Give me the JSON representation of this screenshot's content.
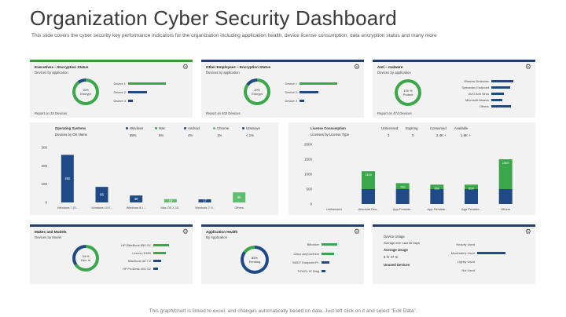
{
  "header": {
    "title": "Organization Cyber Security Dashboard",
    "subtitle": "This slide covers the cyber security key performance indicators for the organization including application health, device license consumption, data encryption status and many more"
  },
  "footer": "This graph/chart is linked to excel, and changes automatically based on data. Just left click on it and select \"Edit Data\".",
  "colors": {
    "green": "#3aa84a",
    "navy": "#1f4a86",
    "light_green": "#5cbf6e",
    "panel_bg": "#f2f2f2"
  },
  "panels": {
    "executives": {
      "title": "Executives – Encryption Status",
      "subtitle": "Devices by application",
      "donut": {
        "line1": "10%",
        "line2": "Encrypt",
        "fraction": 0.9
      },
      "bars": [
        {
          "label": "Device 1",
          "value": 1.0,
          "color": "green"
        },
        {
          "label": "Device 2",
          "value": 0.45,
          "color": "navy"
        },
        {
          "label": "Device 3",
          "value": 0.12,
          "color": "navy"
        }
      ],
      "report": "Report on 32 Devices"
    },
    "other_employees": {
      "title": "Other Employees – Encryption Status",
      "subtitle": "Devices by application",
      "donut": {
        "line1": "10%",
        "line2": "Encrypt",
        "fraction": 0.85
      },
      "bars": [
        {
          "label": "Device 1",
          "value": 1.0,
          "color": "green"
        },
        {
          "label": "Device 2",
          "value": 0.5,
          "color": "navy"
        },
        {
          "label": "Device 3",
          "value": 0.12,
          "color": "navy"
        }
      ],
      "report": "Report on 402 Devices"
    },
    "antimalware": {
      "title": "Anti – malware",
      "subtitle": "Devices by application",
      "donut": {
        "line1": "100 %",
        "line2": "Protect",
        "fraction": 1.0
      },
      "bars": [
        {
          "label": "Window Defender",
          "value": 1.0,
          "color": "navy"
        },
        {
          "label": "Symantec Endpoint",
          "value": 0.85,
          "color": "navy"
        },
        {
          "label": "AVG Anti Virus",
          "value": 0.6,
          "color": "navy"
        },
        {
          "label": "Microsoft Assess",
          "value": 0.5,
          "color": "navy"
        },
        {
          "label": "Others",
          "value": 0.9,
          "color": "navy"
        }
      ],
      "report": "Report on 474 Devices"
    },
    "os": {
      "title": "Operating Systems",
      "subtitle": "Devices by OS Name",
      "legend": [
        {
          "name": "Windows",
          "pct": "89%",
          "color": "#1f4a86"
        },
        {
          "name": "Mac",
          "pct": "6%",
          "color": "#3aa84a"
        },
        {
          "name": "Android",
          "pct": "4%",
          "color": "#1f4a86"
        },
        {
          "name": "Chrome",
          "pct": "1%",
          "color": "#5cbf6e"
        },
        {
          "name": "Unknown",
          "pct": "< 1%",
          "color": "#1f4a86"
        }
      ]
    },
    "license": {
      "title": "License Consumption",
      "subtitle": "Licenses by License Type",
      "stats": [
        {
          "label": "Unlicensed",
          "value": "3"
        },
        {
          "label": "Expiring",
          "value": "0"
        },
        {
          "label": "Consumed",
          "value": "2.4K +"
        },
        {
          "label": "Available",
          "value": "1.8K +"
        }
      ]
    },
    "makes": {
      "title": "Makes and Models",
      "subtitle": "Devices by Model",
      "donut": {
        "line1": "34 %",
        "line2": "Dev. in",
        "fraction": 0.66
      },
      "bars": [
        {
          "label": "HP EliteBook 850 G1",
          "value": 0.7,
          "color": "green"
        },
        {
          "label": "Lenovo E450",
          "value": 0.55,
          "color": "green"
        },
        {
          "label": "MacBook Air 7.2",
          "value": 0.35,
          "color": "navy"
        },
        {
          "label": "HP ProDesk 400 G2",
          "value": 0.2,
          "color": "navy"
        }
      ]
    },
    "apphealth": {
      "title": "Application Health",
      "subtitle": "By Application",
      "donut": {
        "line1": "85%",
        "line2": "Pending",
        "fraction": 0.85
      },
      "bars": [
        {
          "label": "Bitlocker",
          "value": 0.8,
          "color": "green"
        },
        {
          "label": "Cisco AnyConnect",
          "value": 0.6,
          "color": "green"
        },
        {
          "label": "SMDT Endpoint Pr.",
          "value": 0.45,
          "color": "navy"
        },
        {
          "label": "TIZAGL IP Diag",
          "value": 0.2,
          "color": "navy"
        }
      ]
    },
    "usage": {
      "title": "Device Usage",
      "lines": [
        "Average over Last 30 Days",
        "Average Usage",
        "6 hr 47 m",
        "Unused Devices"
      ],
      "stats_label": "Average over",
      "stats": [
        {
          "label": "Heavily Used",
          "value": 0.0
        },
        {
          "label": "Moderately Used",
          "value": 0.7
        },
        {
          "label": "Lightly Used",
          "value": 0.0
        },
        {
          "label": "Not Used",
          "value": 0.0
        }
      ]
    }
  },
  "chart_data": [
    {
      "type": "bar",
      "title": "Operating Systems",
      "categories": [
        "Windows 7 (S..",
        "Windows 10 E..",
        "Windows 8.1 ..",
        "Mac OS X 10..",
        "Windows 7 U..",
        "Others"
      ],
      "values": [
        260,
        85,
        38,
        18,
        17,
        55
      ],
      "value_labels": [
        "260",
        "85",
        "38",
        "18",
        "17",
        "55"
      ],
      "colors": [
        "#1f4a86",
        "#1f4a86",
        "#1f4a86",
        "#5cbf6e",
        "#1f4a86",
        "#5cbf6e"
      ],
      "yticks": [
        0,
        100,
        200,
        300
      ],
      "ylim": [
        0,
        300
      ]
    },
    {
      "type": "bar",
      "title": "License Consumption",
      "categories": [
        "Unlicensed",
        "Absolute Res..",
        "App Persiste..",
        "App Persiste..",
        "App Persiste..",
        "Others"
      ],
      "series": [
        {
          "name": "Consumed",
          "values": [
            0,
            500,
            500,
            500,
            500,
            500
          ],
          "color": "#1f4a86"
        },
        {
          "name": "Available",
          "values": [
            0,
            600,
            200,
            150,
            150,
            1000
          ],
          "color": "#3aa84a"
        }
      ],
      "top_labels": [
        "",
        "1100",
        "700",
        "650",
        "650",
        "1500"
      ],
      "yticks": [
        0,
        500,
        1000,
        1500,
        2000
      ],
      "ylim": [
        0,
        2000
      ]
    }
  ]
}
